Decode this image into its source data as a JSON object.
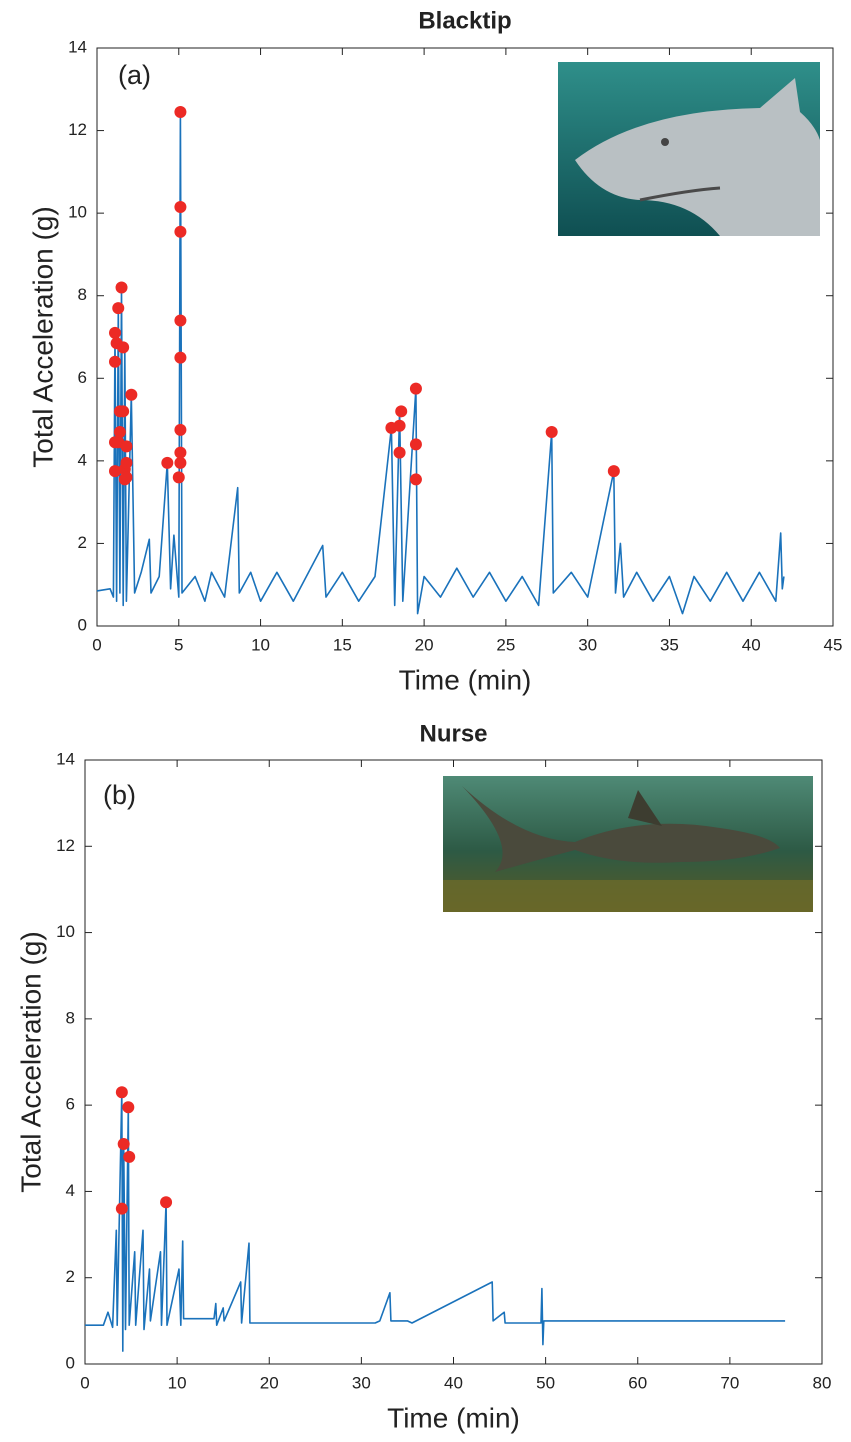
{
  "chart_data": [
    {
      "type": "line",
      "title": "Blacktip",
      "panel_label": "(a)",
      "x_label": "Time (min)",
      "y_label": "Total Acceleration (g)",
      "xlim": [
        0,
        45
      ],
      "ylim": [
        0,
        14
      ],
      "xticks": [
        0,
        5,
        10,
        15,
        20,
        25,
        30,
        35,
        40,
        45
      ],
      "yticks": [
        0,
        2,
        4,
        6,
        8,
        10,
        12,
        14
      ],
      "line": {
        "color": "#1a72bb",
        "x": [
          0,
          0.8,
          1.0,
          1.1,
          1.2,
          1.3,
          1.4,
          1.5,
          1.6,
          1.7,
          1.8,
          2.1,
          2.3,
          2.7,
          3.2,
          3.3,
          3.8,
          4.3,
          4.5,
          4.7,
          5.0,
          5.1,
          5.2,
          6.0,
          6.6,
          7.0,
          7.8,
          8.6,
          8.7,
          9.4,
          10,
          11,
          12,
          13.8,
          14,
          15,
          16,
          17,
          18,
          18.2,
          18.5,
          18.7,
          19.5,
          19.6,
          20,
          21,
          22,
          23,
          24,
          25,
          26,
          27,
          27.8,
          27.9,
          29,
          30,
          31.6,
          31.7,
          32,
          32.2,
          33,
          34,
          35,
          35.8,
          36.5,
          37.5,
          38.5,
          39.5,
          40.5,
          41.5,
          41.8,
          41.9,
          42
        ],
        "values": [
          0.85,
          0.9,
          0.7,
          7.1,
          0.6,
          7.7,
          0.8,
          8.2,
          0.5,
          6.75,
          0.6,
          5.6,
          0.8,
          1.3,
          2.1,
          0.8,
          1.2,
          3.95,
          0.9,
          2.2,
          0.7,
          12.45,
          0.8,
          1.2,
          0.6,
          1.3,
          0.7,
          3.35,
          0.8,
          1.3,
          0.6,
          1.3,
          0.6,
          1.95,
          0.7,
          1.3,
          0.6,
          1.2,
          4.8,
          0.5,
          5.2,
          0.6,
          5.75,
          0.3,
          1.2,
          0.7,
          1.4,
          0.7,
          1.3,
          0.6,
          1.2,
          0.5,
          4.7,
          0.8,
          1.3,
          0.7,
          3.75,
          0.8,
          2.0,
          0.7,
          1.3,
          0.6,
          1.2,
          0.3,
          1.2,
          0.6,
          1.3,
          0.6,
          1.3,
          0.6,
          2.25,
          0.9,
          1.2
        ]
      },
      "peaks": {
        "color": "#ec2a25",
        "x": [
          1.1,
          1.1,
          1.1,
          1.1,
          1.2,
          1.3,
          1.3,
          1.4,
          1.4,
          1.5,
          1.6,
          1.6,
          1.7,
          1.7,
          1.8,
          1.8,
          1.8,
          2.1,
          4.3,
          5.0,
          5.1,
          5.1,
          5.1,
          5.1,
          5.1,
          5.1,
          5.1,
          5.1,
          18.0,
          18.5,
          18.5,
          18.6,
          19.5,
          19.5,
          19.5,
          27.8,
          31.6
        ],
        "values": [
          3.75,
          4.45,
          6.4,
          7.1,
          6.85,
          4.45,
          7.7,
          5.2,
          4.7,
          8.2,
          5.2,
          6.75,
          3.8,
          3.55,
          4.35,
          3.6,
          3.95,
          5.6,
          3.95,
          3.6,
          3.95,
          4.2,
          4.75,
          6.5,
          7.4,
          9.55,
          10.15,
          12.45,
          4.8,
          4.2,
          4.85,
          5.2,
          3.55,
          4.4,
          5.75,
          4.7,
          3.75
        ]
      }
    },
    {
      "type": "line",
      "title": "Nurse",
      "panel_label": "(b)",
      "x_label": "Time (min)",
      "y_label": "Total Acceleration (g)",
      "xlim": [
        0,
        80
      ],
      "ylim": [
        0,
        14
      ],
      "xticks": [
        0,
        10,
        20,
        30,
        40,
        50,
        60,
        70,
        80
      ],
      "yticks": [
        0,
        2,
        4,
        6,
        8,
        10,
        12,
        14
      ],
      "line": {
        "color": "#1a72bb",
        "x": [
          0,
          2,
          2.5,
          3.0,
          3.4,
          3.5,
          4.0,
          4.1,
          4.2,
          4.4,
          4.7,
          4.8,
          5.4,
          5.5,
          6.3,
          6.4,
          7.0,
          7.1,
          8.2,
          8.3,
          8.8,
          8.9,
          10.2,
          10.4,
          10.6,
          10.7,
          14,
          14.2,
          14.3,
          15,
          15.1,
          16.9,
          17,
          17.8,
          17.9,
          20,
          31.5,
          32,
          33.1,
          33.2,
          35,
          35.5,
          44.2,
          44.3,
          45.5,
          45.6,
          49.5,
          49.6,
          49.7,
          49.8,
          76
        ],
        "values": [
          0.9,
          0.9,
          1.2,
          0.85,
          3.1,
          0.9,
          6.3,
          0.3,
          5.1,
          0.8,
          5.95,
          0.9,
          2.6,
          0.9,
          3.1,
          0.8,
          2.2,
          1.0,
          2.6,
          0.9,
          3.75,
          0.9,
          2.2,
          0.9,
          2.85,
          1.05,
          1.05,
          1.4,
          0.9,
          1.3,
          1.0,
          1.9,
          0.95,
          2.8,
          0.95,
          0.95,
          0.95,
          1.0,
          1.65,
          1.0,
          1.0,
          0.95,
          1.9,
          1.0,
          1.2,
          0.95,
          0.95,
          1.75,
          0.45,
          1.0,
          1.0
        ]
      },
      "peaks": {
        "color": "#ec2a25",
        "x": [
          4.0,
          4.0,
          4.2,
          4.7,
          4.8,
          8.8
        ],
        "values": [
          3.6,
          6.3,
          5.1,
          5.95,
          4.8,
          3.75
        ]
      }
    }
  ]
}
